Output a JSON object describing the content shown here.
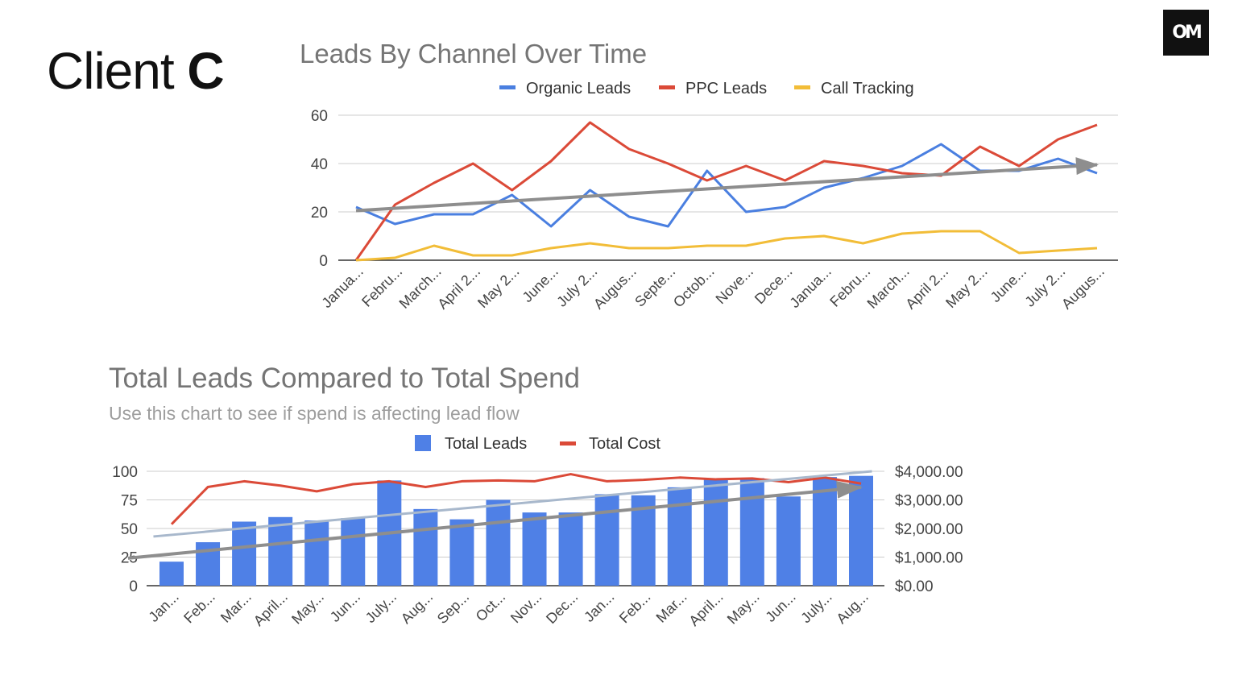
{
  "header": {
    "client_label": "Client",
    "client_letter": "C",
    "logo_text": "OM"
  },
  "chart_data": [
    {
      "type": "line",
      "title": "Leads By Channel Over Time",
      "categories": [
        "Janua...",
        "Febru...",
        "March...",
        "April 2...",
        "May 2...",
        "June...",
        "July 2...",
        "Augus...",
        "Septe...",
        "Octob...",
        "Nove...",
        "Dece...",
        "Janua...",
        "Febru...",
        "March...",
        "April 2...",
        "May 2...",
        "June...",
        "July 2...",
        "Augus..."
      ],
      "ylim": [
        0,
        60
      ],
      "yticks": [
        0,
        20,
        40,
        60
      ],
      "legend_position": "top",
      "series": [
        {
          "name": "Organic Leads",
          "color": "#4a7fe0",
          "values": [
            22,
            15,
            19,
            19,
            27,
            14,
            29,
            18,
            14,
            37,
            20,
            22,
            30,
            34,
            39,
            48,
            37,
            37,
            42,
            36
          ]
        },
        {
          "name": "PPC Leads",
          "color": "#db4a38",
          "values": [
            0,
            23,
            32,
            40,
            29,
            41,
            57,
            46,
            40,
            33,
            39,
            33,
            41,
            39,
            36,
            35,
            47,
            39,
            50,
            56
          ]
        },
        {
          "name": "Call Tracking",
          "color": "#f2bd38",
          "values": [
            0,
            1,
            6,
            2,
            2,
            5,
            7,
            5,
            5,
            6,
            6,
            9,
            10,
            7,
            11,
            12,
            12,
            3,
            4,
            5
          ]
        }
      ],
      "trend_arrow": {
        "color": "#8e8e8e",
        "from": [
          0,
          20.5
        ],
        "to": [
          19,
          39.5
        ]
      }
    },
    {
      "type": "bar",
      "title": "Total Leads Compared to Total Spend",
      "subtitle": "Use this chart to see if spend is affecting lead flow",
      "categories": [
        "Jan...",
        "Feb...",
        "Mar...",
        "April...",
        "May...",
        "Jun...",
        "July...",
        "Aug...",
        "Sep...",
        "Oct...",
        "Nov...",
        "Dec...",
        "Jan...",
        "Feb...",
        "Mar...",
        "April...",
        "May...",
        "Jun...",
        "July...",
        "Aug..."
      ],
      "ylim": [
        0,
        100
      ],
      "yticks": [
        0,
        25,
        50,
        75,
        100
      ],
      "y2lim": [
        0,
        4000
      ],
      "y2ticks": [
        "$0.00",
        "$1,000.00",
        "$2,000.00",
        "$3,000.00",
        "$4,000.00"
      ],
      "legend_position": "top",
      "series": [
        {
          "name": "Total Leads",
          "type": "bar",
          "color": "#4f80e6",
          "values": [
            21,
            38,
            56,
            60,
            57,
            59,
            92,
            67,
            58,
            75,
            64,
            64,
            80,
            79,
            86,
            93,
            94,
            78,
            95,
            96
          ]
        },
        {
          "name": "Total Cost",
          "type": "line",
          "axis": "right",
          "color": "#db4a38",
          "values": [
            2150,
            3450,
            3650,
            3500,
            3300,
            3550,
            3650,
            3450,
            3650,
            3680,
            3650,
            3900,
            3650,
            3700,
            3780,
            3720,
            3750,
            3620,
            3780,
            3570
          ]
        }
      ],
      "trend_lines": [
        {
          "color": "#a8b8cc",
          "from": [
            -0.5,
            43
          ],
          "to": [
            19.3,
            100
          ]
        },
        {
          "color": "#8e8e8e",
          "from": [
            -1.2,
            24
          ],
          "to": [
            19,
            86
          ]
        }
      ]
    }
  ]
}
